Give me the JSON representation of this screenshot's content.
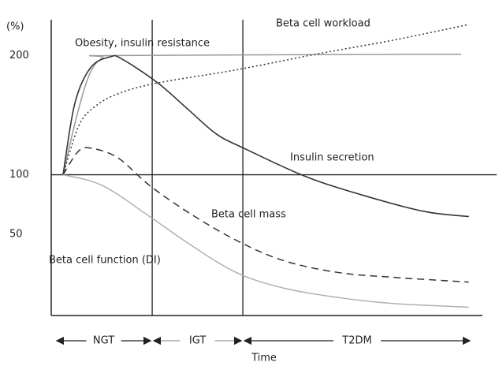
{
  "chart_data": {
    "type": "line",
    "y_unit": "(%)",
    "x_label": "Time",
    "xlim": [
      0,
      100
    ],
    "ylim": [
      -18,
      230
    ],
    "yticks": [
      50,
      100,
      200
    ],
    "grid": false,
    "reference_line": 100,
    "phase_boundaries": [
      23.5,
      44.6
    ],
    "phases": [
      "NGT",
      "IGT",
      "T2DM"
    ],
    "series": [
      {
        "name": "Obesity, insulin resistance",
        "color": "#9a9a9a",
        "style": "solid",
        "width": 1.5,
        "x": [
          2.75,
          6,
          9,
          12,
          16,
          95.4
        ],
        "values": [
          100,
          150,
          185,
          198,
          200,
          201
        ]
      },
      {
        "name": "Beta cell workload",
        "color": "#333333",
        "style": "dotted",
        "width": 1.5,
        "x": [
          2.75,
          6.4,
          10.1,
          15.6,
          24.8,
          43.1,
          61.5,
          79.8,
          97.2
        ],
        "values": [
          100,
          141,
          157,
          168,
          177,
          188,
          201,
          213,
          226
        ]
      },
      {
        "name": "Insulin secretion",
        "color": "#333333",
        "style": "solid",
        "width": 1.6,
        "x": [
          2.75,
          5.5,
          9.2,
          13.8,
          16.5,
          24.8,
          32.1,
          38.5,
          45,
          59.6,
          74.3,
          87.2,
          97.2
        ],
        "values": [
          100,
          160,
          190,
          199,
          197,
          177,
          154,
          134,
          122,
          98,
          81,
          69,
          65
        ]
      },
      {
        "name": "Beta cell mass",
        "color": "#333333",
        "style": "dashed",
        "width": 1.5,
        "x": [
          2.75,
          6.4,
          9.7,
          15.6,
          22.9,
          32.1,
          43.1,
          54.1,
          66.9,
          79.8,
          97.2
        ],
        "values": [
          100,
          120,
          122,
          114,
          91,
          68,
          45,
          28,
          18,
          14,
          10
        ]
      },
      {
        "name": "Beta cell function (DI)",
        "color": "#b0b0b0",
        "style": "solid",
        "width": 1.5,
        "x": [
          2.75,
          11.9,
          22.9,
          32.1,
          43.1,
          54.1,
          66.9,
          79.8,
          97.2
        ],
        "values": [
          100,
          91,
          65,
          42,
          18,
          5,
          -3,
          -8,
          -11
        ]
      }
    ]
  }
}
